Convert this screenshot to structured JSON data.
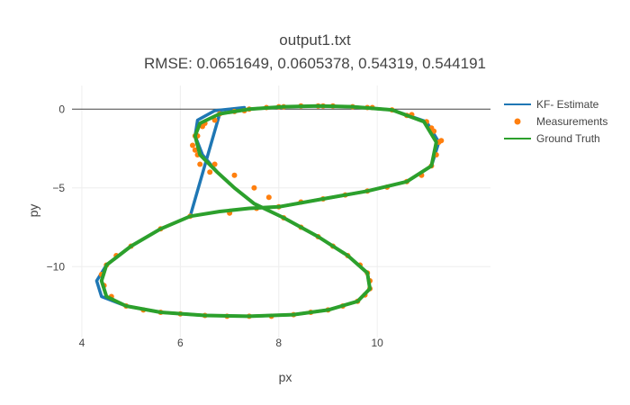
{
  "chart_data": {
    "type": "scatter",
    "title": "output1.txt",
    "subtitle": "RMSE: 0.0651649, 0.0605378, 0.54319, 0.544191",
    "xlabel": "px",
    "ylabel": "py",
    "xlim": [
      3.8,
      12.3
    ],
    "ylim": [
      -14.5,
      1.5
    ],
    "xticks": [
      4,
      6,
      8,
      10
    ],
    "yticks": [
      0,
      -5,
      -10
    ],
    "grid": true,
    "legend_position": "top-right",
    "colors": {
      "estimate": "#1f77b4",
      "measurements": "#ff7f0e",
      "ground_truth": "#2ca02c"
    },
    "series": [
      {
        "name": "KF- Estimate",
        "mode": "lines",
        "x": [
          8.0,
          8.9,
          9.8,
          10.6,
          11.1,
          11.25,
          11.0,
          10.3,
          9.5,
          8.8,
          8.1,
          7.4,
          6.8,
          6.2,
          5.6,
          5.0,
          4.5,
          4.3,
          4.4,
          4.9,
          5.6,
          6.5,
          7.4,
          8.3,
          9.0,
          9.6,
          9.85,
          9.8,
          9.4,
          8.8,
          8.1,
          7.5,
          7.1,
          6.75,
          6.45,
          6.3,
          6.35,
          6.7,
          7.3
        ],
        "y": [
          -6.2,
          -5.7,
          -5.2,
          -4.6,
          -3.6,
          -2.1,
          -0.8,
          -0.05,
          0.15,
          0.2,
          0.15,
          0.0,
          -0.3,
          -6.8,
          -7.6,
          -8.7,
          -9.9,
          -10.9,
          -11.9,
          -12.5,
          -12.9,
          -13.1,
          -13.15,
          -13.05,
          -12.75,
          -12.2,
          -11.4,
          -10.4,
          -9.3,
          -8.1,
          -6.9,
          -6.0,
          -5.0,
          -4.0,
          -2.9,
          -1.7,
          -0.7,
          -0.1,
          0.1
        ]
      },
      {
        "name": "Measurements",
        "mode": "markers",
        "x": [
          8.0,
          8.45,
          8.9,
          9.35,
          9.8,
          10.2,
          10.6,
          10.9,
          11.1,
          11.2,
          11.25,
          11.15,
          11.0,
          10.7,
          10.3,
          9.9,
          9.5,
          9.1,
          8.8,
          8.45,
          8.1,
          7.75,
          7.4,
          7.1,
          6.8,
          6.5,
          6.3,
          6.25,
          6.35,
          6.7,
          7.1,
          7.5,
          7.8,
          7.55,
          7.0,
          6.2,
          5.6,
          5.0,
          4.7,
          4.5,
          4.4,
          4.45,
          4.6,
          4.9,
          5.25,
          5.6,
          6.0,
          6.5,
          6.95,
          7.4,
          7.85,
          8.3,
          8.65,
          9.0,
          9.3,
          9.6,
          9.75,
          9.85,
          9.85,
          9.8,
          9.65,
          9.4,
          9.1,
          8.8,
          8.45,
          8.1,
          6.6,
          6.4,
          6.3,
          6.35,
          6.45,
          6.7,
          7.3,
          8.0,
          8.9,
          9.8,
          10.6,
          11.1,
          11.3
        ],
        "y": [
          -6.2,
          -5.9,
          -5.7,
          -5.45,
          -5.2,
          -4.95,
          -4.6,
          -4.2,
          -3.6,
          -2.9,
          -2.1,
          -1.4,
          -0.8,
          -0.35,
          -0.05,
          0.1,
          0.15,
          0.2,
          0.2,
          0.2,
          0.15,
          0.1,
          0.0,
          -0.15,
          -0.3,
          -0.9,
          -1.7,
          -2.3,
          -2.9,
          -3.5,
          -4.2,
          -5.0,
          -5.6,
          -6.3,
          -6.6,
          -6.8,
          -7.6,
          -8.7,
          -9.3,
          -9.9,
          -10.5,
          -11.2,
          -11.9,
          -12.5,
          -12.75,
          -12.9,
          -13.0,
          -13.1,
          -13.15,
          -13.15,
          -13.15,
          -13.05,
          -12.9,
          -12.75,
          -12.5,
          -12.2,
          -11.8,
          -11.4,
          -10.9,
          -10.4,
          -9.9,
          -9.3,
          -8.7,
          -8.1,
          -7.5,
          -6.9,
          -4.0,
          -3.5,
          -2.6,
          -1.7,
          -1.1,
          -0.7,
          -0.1,
          0.15,
          0.2,
          0.1,
          -0.4,
          -1.2,
          -2.0
        ]
      },
      {
        "name": "Ground Truth",
        "mode": "lines",
        "x": [
          8.0,
          8.9,
          9.8,
          10.6,
          11.1,
          11.2,
          10.95,
          10.3,
          9.5,
          8.8,
          8.1,
          7.4,
          6.8,
          6.4,
          6.3,
          6.4,
          6.75,
          7.1,
          7.5,
          8.1,
          8.8,
          9.4,
          9.8,
          9.85,
          9.6,
          9.0,
          8.3,
          7.4,
          6.5,
          5.6,
          4.9,
          4.5,
          4.4,
          4.5,
          5.0,
          5.6,
          6.2,
          6.8,
          7.4,
          8.0
        ],
        "y": [
          -6.2,
          -5.7,
          -5.2,
          -4.6,
          -3.6,
          -2.1,
          -0.8,
          -0.05,
          0.15,
          0.2,
          0.15,
          0.0,
          -0.3,
          -0.9,
          -1.7,
          -2.9,
          -4.0,
          -5.0,
          -6.0,
          -6.9,
          -8.1,
          -9.3,
          -10.4,
          -11.4,
          -12.2,
          -12.75,
          -13.05,
          -13.15,
          -13.1,
          -12.9,
          -12.5,
          -11.9,
          -10.9,
          -9.9,
          -8.7,
          -7.6,
          -6.8,
          -6.5,
          -6.3,
          -6.2
        ]
      }
    ]
  }
}
